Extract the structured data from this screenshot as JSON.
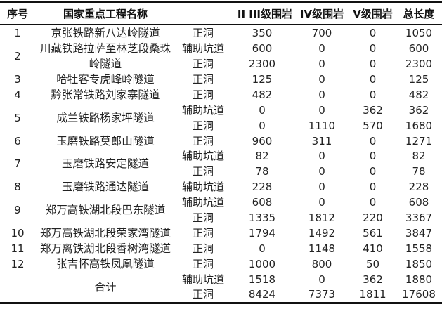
{
  "headers": {
    "num": "序号",
    "name": "国家重点工程名称",
    "type": "",
    "g23": "II III级围岩",
    "g4": "IV级围岩",
    "g5": "V级围岩",
    "total": "总长度"
  },
  "groups": [
    {
      "num": "1",
      "name": "京张铁路新八达岭隧道",
      "rows": [
        {
          "type": "正洞",
          "g23": "350",
          "g4": "700",
          "g5": "0",
          "total": "1050"
        }
      ]
    },
    {
      "num": "2",
      "name": "川藏铁路拉萨至林芝段桑珠岭隧道",
      "rows": [
        {
          "type": "辅助坑道",
          "g23": "600",
          "g4": "0",
          "g5": "0",
          "total": "600"
        },
        {
          "type": "正洞",
          "g23": "2300",
          "g4": "0",
          "g5": "0",
          "total": "2300"
        }
      ]
    },
    {
      "num": "3",
      "name": "哈牡客专虎峰岭隧道",
      "rows": [
        {
          "type": "正洞",
          "g23": "125",
          "g4": "0",
          "g5": "0",
          "total": "125"
        }
      ]
    },
    {
      "num": "4",
      "name": "黔张常铁路刘家寨隧道",
      "rows": [
        {
          "type": "正洞",
          "g23": "482",
          "g4": "0",
          "g5": "0",
          "total": "482"
        }
      ]
    },
    {
      "num": "5",
      "name": "成兰铁路杨家坪隧道",
      "rows": [
        {
          "type": "辅助坑道",
          "g23": "0",
          "g4": "0",
          "g5": "362",
          "total": "362"
        },
        {
          "type": "正洞",
          "g23": "0",
          "g4": "1110",
          "g5": "570",
          "total": "1680"
        }
      ]
    },
    {
      "num": "6",
      "name": "玉磨铁路莫郎山隧道",
      "rows": [
        {
          "type": "正洞",
          "g23": "960",
          "g4": "311",
          "g5": "0",
          "total": "1271"
        }
      ]
    },
    {
      "num": "7",
      "name": "玉磨铁路安定隧道",
      "rows": [
        {
          "type": "辅助坑道",
          "g23": "82",
          "g4": "0",
          "g5": "0",
          "total": "82"
        },
        {
          "type": "正洞",
          "g23": "78",
          "g4": "0",
          "g5": "0",
          "total": "78"
        }
      ]
    },
    {
      "num": "8",
      "name": "玉磨铁路通达隧道",
      "rows": [
        {
          "type": "辅助坑道",
          "g23": "228",
          "g4": "0",
          "g5": "0",
          "total": "228"
        }
      ]
    },
    {
      "num": "9",
      "name": "郑万高铁湖北段巴东隧道",
      "rows": [
        {
          "type": "辅助坑道",
          "g23": "608",
          "g4": "0",
          "g5": "0",
          "total": "608"
        },
        {
          "type": "正洞",
          "g23": "1335",
          "g4": "1812",
          "g5": "220",
          "total": "3367"
        }
      ]
    },
    {
      "num": "10",
      "name": "郑万高铁湖北段荣家湾隧道",
      "rows": [
        {
          "type": "正洞",
          "g23": "1794",
          "g4": "1492",
          "g5": "561",
          "total": "3847"
        }
      ]
    },
    {
      "num": "11",
      "name": "郑万离铁湖北段香树湾隧道",
      "rows": [
        {
          "type": "正洞",
          "g23": "0",
          "g4": "1148",
          "g5": "410",
          "total": "1558"
        }
      ]
    },
    {
      "num": "12",
      "name": "张吉怀高铁凤凰隧道",
      "rows": [
        {
          "type": "正洞",
          "g23": "1000",
          "g4": "800",
          "g5": "50",
          "total": "1850"
        }
      ]
    }
  ],
  "totals": {
    "label": "合计",
    "rows": [
      {
        "type": "辅助坑道",
        "g23": "1518",
        "g4": "0",
        "g5": "362",
        "total": "1880"
      },
      {
        "type": "正洞",
        "g23": "8424",
        "g4": "7373",
        "g5": "1811",
        "total": "17608"
      }
    ]
  }
}
